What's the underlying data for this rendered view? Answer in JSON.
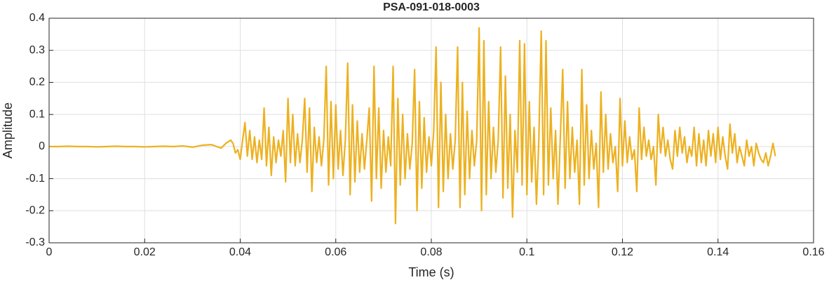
{
  "chart_data": {
    "type": "line",
    "title": "PSA-091-018-0003",
    "xlabel": "Time (s)",
    "ylabel": "Amplitude",
    "color": "#edb120",
    "grid": true,
    "xlim": [
      0,
      0.16
    ],
    "xticks": [
      0,
      0.02,
      0.04,
      0.06,
      0.08,
      0.1,
      0.12,
      0.14,
      0.16
    ],
    "ylim": [
      -0.3,
      0.4
    ],
    "yticks": [
      -0.3,
      -0.2,
      -0.1,
      0,
      0.1,
      0.2,
      0.3,
      0.4
    ],
    "x": [
      0,
      0.002,
      0.004,
      0.006,
      0.008,
      0.01,
      0.012,
      0.014,
      0.016,
      0.018,
      0.02,
      0.022,
      0.024,
      0.026,
      0.028,
      0.03,
      0.032,
      0.034,
      0.036,
      0.037,
      0.038,
      0.0385,
      0.039,
      0.0395,
      0.04,
      0.0405,
      0.041,
      0.0415,
      0.042,
      0.0425,
      0.043,
      0.0435,
      0.044,
      0.0445,
      0.045,
      0.0455,
      0.046,
      0.0465,
      0.047,
      0.0475,
      0.048,
      0.0485,
      0.049,
      0.0495,
      0.05,
      0.0505,
      0.051,
      0.0515,
      0.052,
      0.0525,
      0.053,
      0.0535,
      0.054,
      0.0545,
      0.055,
      0.0555,
      0.056,
      0.0565,
      0.057,
      0.0575,
      0.058,
      0.0585,
      0.059,
      0.0595,
      0.06,
      0.0605,
      0.061,
      0.0615,
      0.062,
      0.0625,
      0.063,
      0.0635,
      0.064,
      0.0645,
      0.065,
      0.0655,
      0.066,
      0.0665,
      0.067,
      0.0675,
      0.068,
      0.0685,
      0.069,
      0.0695,
      0.07,
      0.0705,
      0.071,
      0.0715,
      0.072,
      0.0725,
      0.073,
      0.0735,
      0.074,
      0.0745,
      0.075,
      0.0755,
      0.076,
      0.0765,
      0.077,
      0.0775,
      0.078,
      0.0785,
      0.079,
      0.0795,
      0.08,
      0.0805,
      0.081,
      0.0815,
      0.082,
      0.0825,
      0.083,
      0.0835,
      0.084,
      0.0845,
      0.085,
      0.0855,
      0.086,
      0.0865,
      0.087,
      0.0875,
      0.088,
      0.0885,
      0.089,
      0.0895,
      0.09,
      0.0905,
      0.091,
      0.0915,
      0.092,
      0.0925,
      0.093,
      0.0935,
      0.094,
      0.0945,
      0.095,
      0.0955,
      0.096,
      0.0965,
      0.097,
      0.0975,
      0.098,
      0.0985,
      0.099,
      0.0995,
      0.1,
      0.1005,
      0.101,
      0.1015,
      0.102,
      0.1025,
      0.103,
      0.1035,
      0.104,
      0.1045,
      0.105,
      0.1055,
      0.106,
      0.1065,
      0.107,
      0.1075,
      0.108,
      0.1085,
      0.109,
      0.1095,
      0.11,
      0.1105,
      0.111,
      0.1115,
      0.112,
      0.1125,
      0.113,
      0.1135,
      0.114,
      0.1145,
      0.115,
      0.1155,
      0.116,
      0.1165,
      0.117,
      0.1175,
      0.118,
      0.1185,
      0.119,
      0.1195,
      0.12,
      0.1205,
      0.121,
      0.1215,
      0.122,
      0.1225,
      0.123,
      0.1235,
      0.124,
      0.1245,
      0.125,
      0.1255,
      0.126,
      0.1265,
      0.127,
      0.1275,
      0.128,
      0.1285,
      0.129,
      0.1295,
      0.13,
      0.1305,
      0.131,
      0.1315,
      0.132,
      0.1325,
      0.133,
      0.1335,
      0.134,
      0.1345,
      0.135,
      0.1355,
      0.136,
      0.1365,
      0.137,
      0.1375,
      0.138,
      0.1385,
      0.139,
      0.1395,
      0.14,
      0.1405,
      0.141,
      0.1415,
      0.142,
      0.1425,
      0.143,
      0.1435,
      0.144,
      0.1445,
      0.145,
      0.1455,
      0.146,
      0.1465,
      0.147,
      0.1475,
      0.148,
      0.1485,
      0.149,
      0.1495,
      0.15,
      0.1505,
      0.151,
      0.1515,
      0.152
    ],
    "values": [
      0,
      0,
      0.001,
      0,
      0,
      -0.001,
      0,
      0.001,
      0,
      0,
      -0.001,
      0,
      0.001,
      0,
      0.002,
      -0.002,
      0.004,
      0.006,
      -0.005,
      0.01,
      0.02,
      0.01,
      -0.02,
      -0.01,
      -0.04,
      0.02,
      0.075,
      -0.03,
      0.05,
      -0.04,
      0.03,
      -0.05,
      0.02,
      -0.04,
      0.12,
      -0.06,
      0.06,
      -0.09,
      0.03,
      -0.05,
      0.02,
      -0.03,
      0.05,
      -0.11,
      0.15,
      -0.05,
      0.1,
      -0.06,
      0.04,
      -0.05,
      0.02,
      0.15,
      -0.08,
      0.12,
      -0.14,
      0.06,
      -0.05,
      0.03,
      -0.06,
      0.02,
      0.25,
      -0.12,
      0.14,
      -0.1,
      0.13,
      -0.07,
      0.05,
      -0.09,
      0.02,
      0.26,
      -0.15,
      0.13,
      -0.11,
      0.08,
      -0.08,
      0.04,
      -0.07,
      0.02,
      0.12,
      -0.17,
      0.25,
      -0.1,
      0.12,
      -0.13,
      0.05,
      -0.08,
      0.03,
      -0.06,
      0.25,
      -0.24,
      0.15,
      -0.12,
      0.1,
      -0.1,
      0.04,
      -0.07,
      0.01,
      0.24,
      -0.2,
      0.14,
      -0.13,
      0.09,
      -0.08,
      0.03,
      -0.06,
      0.05,
      0.31,
      -0.19,
      0.2,
      -0.14,
      0.1,
      -0.1,
      0.04,
      -0.07,
      0.02,
      0.31,
      -0.19,
      0.2,
      -0.15,
      0.11,
      -0.1,
      0.05,
      -0.06,
      0.02,
      0.37,
      -0.2,
      0.33,
      -0.15,
      0.14,
      -0.1,
      0.06,
      -0.08,
      0.02,
      0.31,
      -0.16,
      0.22,
      -0.13,
      0.1,
      -0.22,
      0.05,
      -0.08,
      0.33,
      -0.12,
      0.32,
      -0.15,
      0.14,
      -0.11,
      0.06,
      -0.18,
      0.02,
      0.36,
      -0.15,
      0.33,
      -0.12,
      0.12,
      -0.1,
      0.05,
      -0.18,
      0.03,
      0.24,
      -0.13,
      0.14,
      -0.1,
      0.06,
      -0.08,
      0.02,
      -0.18,
      0.24,
      -0.12,
      0.13,
      -0.1,
      0.05,
      -0.07,
      0.01,
      -0.19,
      0.17,
      -0.08,
      0.1,
      -0.07,
      0.04,
      -0.05,
      0,
      -0.14,
      0.15,
      -0.06,
      0.08,
      -0.05,
      0.03,
      -0.04,
      -0.01,
      -0.14,
      0.12,
      -0.04,
      0.06,
      -0.03,
      0.02,
      -0.04,
      0,
      -0.12,
      0.1,
      -0.02,
      0.06,
      -0.03,
      0.02,
      -0.04,
      -0.07,
      0.05,
      -0.03,
      0.06,
      -0.02,
      0.03,
      -0.05,
      0,
      -0.03,
      0.06,
      -0.06,
      0.04,
      -0.05,
      0.02,
      -0.06,
      0.05,
      -0.03,
      0.04,
      -0.05,
      0.06,
      -0.04,
      0.03,
      -0.03,
      -0.07,
      0.07,
      -0.02,
      0.04,
      -0.05,
      0,
      -0.03,
      -0.06,
      0.02,
      -0.03,
      0,
      -0.06,
      0.01,
      -0.02,
      -0.04,
      -0.05,
      -0.02,
      -0.06,
      -0.03,
      0.01,
      -0.03
    ]
  }
}
